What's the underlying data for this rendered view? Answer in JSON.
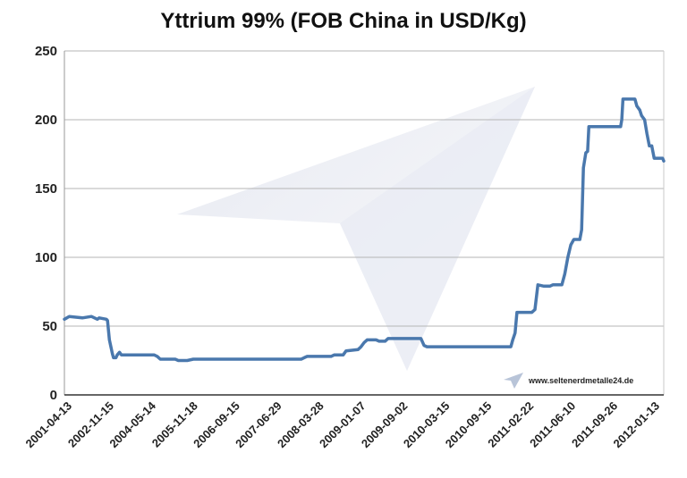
{
  "chart_data": {
    "type": "line",
    "title": "Yttrium 99% (FOB China in USD/Kg)",
    "xlabel": "",
    "ylabel": "",
    "ylim": [
      0,
      250
    ],
    "y_ticks": [
      0,
      50,
      100,
      150,
      200,
      250
    ],
    "x_ticks": [
      "2001-04-13",
      "2002-11-15",
      "2004-05-14",
      "2005-11-18",
      "2006-09-15",
      "2007-06-29",
      "2008-03-28",
      "2009-01-07",
      "2009-09-02",
      "2010-03-15",
      "2010-09-15",
      "2011-02-22",
      "2011-06-10",
      "2011-09-26",
      "2012-01-13"
    ],
    "grid": true,
    "legend": "none",
    "line_color": "#4a78ad",
    "series": [
      {
        "values": [
          [
            0,
            55
          ],
          [
            0.004,
            56
          ],
          [
            0.008,
            57
          ],
          [
            0.03,
            56
          ],
          [
            0.045,
            57
          ],
          [
            0.055,
            55
          ],
          [
            0.058,
            56
          ],
          [
            0.07,
            55
          ],
          [
            0.072,
            54
          ],
          [
            0.075,
            40
          ],
          [
            0.078,
            34
          ],
          [
            0.08,
            30
          ],
          [
            0.082,
            27
          ],
          [
            0.086,
            27
          ],
          [
            0.088,
            29
          ],
          [
            0.092,
            31
          ],
          [
            0.095,
            29
          ],
          [
            0.105,
            29
          ],
          [
            0.15,
            29
          ],
          [
            0.155,
            28
          ],
          [
            0.16,
            26
          ],
          [
            0.185,
            26
          ],
          [
            0.19,
            25
          ],
          [
            0.205,
            25
          ],
          [
            0.215,
            26
          ],
          [
            0.395,
            26
          ],
          [
            0.4,
            27
          ],
          [
            0.405,
            28
          ],
          [
            0.445,
            28
          ],
          [
            0.45,
            29
          ],
          [
            0.465,
            29
          ],
          [
            0.47,
            32
          ],
          [
            0.49,
            33
          ],
          [
            0.495,
            35
          ],
          [
            0.5,
            38
          ],
          [
            0.505,
            40
          ],
          [
            0.52,
            40
          ],
          [
            0.525,
            39
          ],
          [
            0.535,
            39
          ],
          [
            0.54,
            41
          ],
          [
            0.595,
            41
          ],
          [
            0.6,
            36
          ],
          [
            0.605,
            35
          ],
          [
            0.66,
            35
          ],
          [
            0.74,
            35
          ],
          [
            0.745,
            35
          ],
          [
            0.748,
            40
          ],
          [
            0.752,
            45
          ],
          [
            0.755,
            60
          ],
          [
            0.78,
            60
          ],
          [
            0.785,
            62
          ],
          [
            0.79,
            80
          ],
          [
            0.8,
            79
          ],
          [
            0.81,
            79
          ],
          [
            0.815,
            80
          ],
          [
            0.83,
            80
          ],
          [
            0.835,
            88
          ],
          [
            0.84,
            100
          ],
          [
            0.845,
            109
          ],
          [
            0.85,
            113
          ],
          [
            0.86,
            113
          ],
          [
            0.863,
            120
          ],
          [
            0.866,
            165
          ],
          [
            0.87,
            176
          ],
          [
            0.873,
            177
          ],
          [
            0.875,
            195
          ],
          [
            0.928,
            195
          ],
          [
            0.93,
            200
          ],
          [
            0.932,
            215
          ],
          [
            0.952,
            215
          ],
          [
            0.955,
            210
          ],
          [
            0.96,
            207
          ],
          [
            0.963,
            203
          ],
          [
            0.968,
            200
          ],
          [
            0.972,
            190
          ],
          [
            0.976,
            181
          ],
          [
            0.98,
            181
          ],
          [
            0.984,
            172
          ],
          [
            0.998,
            172
          ],
          [
            1.0,
            170
          ]
        ]
      }
    ],
    "watermark": "www.seltenerdmetalle24.de"
  }
}
